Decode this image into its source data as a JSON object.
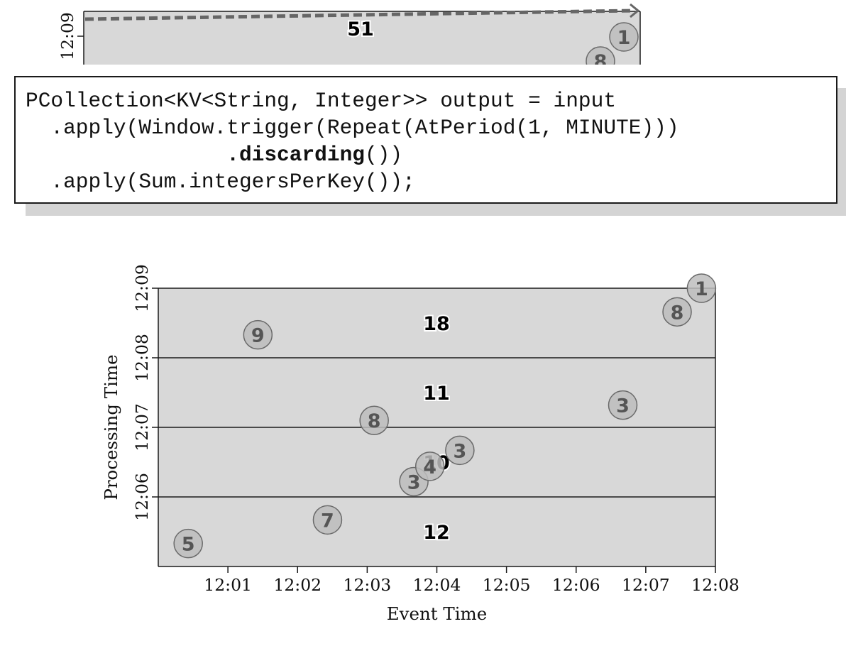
{
  "code": {
    "lines": [
      {
        "indent": 0,
        "parts": [
          {
            "text": "PCollection<KV<String, Integer>> output = input"
          }
        ]
      },
      {
        "indent": 2,
        "parts": [
          {
            "text": ".apply(Window.trigger(Repeat(AtPeriod(1, MINUTE)))"
          }
        ]
      },
      {
        "indent": 16,
        "parts": [
          {
            "text": ".discarding",
            "bold": true
          },
          {
            "text": "())"
          }
        ]
      },
      {
        "indent": 2,
        "parts": [
          {
            "text": ".apply(Sum.integersPerKey());"
          }
        ]
      }
    ]
  },
  "chart_data": [
    {
      "type": "scatter",
      "partial": true,
      "ylabel": "",
      "y_ticks_visible": [
        "12:09"
      ],
      "window_totals": [
        {
          "value": 51
        }
      ],
      "points": [
        {
          "value": 1,
          "x": "12:07.7",
          "y": "12:08.65"
        },
        {
          "value": 8,
          "x": "12:07.4",
          "y": "12:08.35"
        }
      ],
      "colors": {
        "panel": "#d8d8d8",
        "dashed_line": "#666666",
        "point_fill": "#bdbdbd",
        "point_text": "#555555"
      }
    },
    {
      "type": "scatter",
      "xlabel": "Event Time",
      "ylabel": "Processing Time",
      "x_ticks": [
        "12:01",
        "12:02",
        "12:03",
        "12:04",
        "12:05",
        "12:06",
        "12:07",
        "12:08"
      ],
      "y_ticks": [
        "12:06",
        "12:07",
        "12:08",
        "12:09"
      ],
      "xlim": [
        "12:00",
        "12:08"
      ],
      "ylim": [
        "12:05",
        "12:09"
      ],
      "grid": false,
      "panes": [
        {
          "from": "12:05",
          "to": "12:06",
          "sum": 12
        },
        {
          "from": "12:06",
          "to": "12:07",
          "sum": 10
        },
        {
          "from": "12:07",
          "to": "12:08",
          "sum": 11
        },
        {
          "from": "12:08",
          "to": "12:09",
          "sum": 18
        }
      ],
      "points": [
        {
          "value": 5,
          "x": "12:00.43",
          "y": "12:05.33"
        },
        {
          "value": 7,
          "x": "12:02.43",
          "y": "12:05.67"
        },
        {
          "value": 3,
          "x": "12:03.67",
          "y": "12:06.22"
        },
        {
          "value": 4,
          "x": "12:03.90",
          "y": "12:06.44"
        },
        {
          "value": 3,
          "x": "12:04.33",
          "y": "12:06.67"
        },
        {
          "value": 8,
          "x": "12:03.10",
          "y": "12:07.10"
        },
        {
          "value": 3,
          "x": "12:06.67",
          "y": "12:07.32"
        },
        {
          "value": 9,
          "x": "12:01.43",
          "y": "12:08.33"
        },
        {
          "value": 8,
          "x": "12:07.45",
          "y": "12:08.66"
        },
        {
          "value": 1,
          "x": "12:07.80",
          "y": "12:09.00"
        }
      ],
      "colors": {
        "panel": "#d8d8d8",
        "axis": "#1a1a1a",
        "point_fill": "#bdbdbd",
        "point_text": "#555555",
        "sum_text": "#000000"
      }
    }
  ]
}
